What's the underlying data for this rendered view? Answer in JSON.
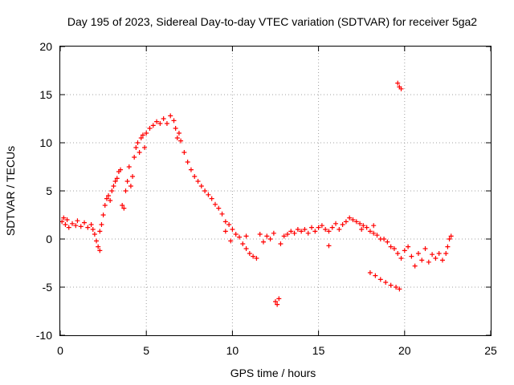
{
  "chart_data": {
    "type": "scatter",
    "title": "Day 195 of 2023, Sidereal Day-to-day VTEC variation (SDTVAR) for receiver 5ga2",
    "xlabel": "GPS time / hours",
    "ylabel": "SDTVAR / TECUs",
    "xlim": [
      0,
      25
    ],
    "ylim": [
      -10,
      20
    ],
    "xticks": [
      "0",
      "5",
      "10",
      "15",
      "20",
      "25"
    ],
    "yticks": [
      "-10",
      "-5",
      "0",
      "5",
      "10",
      "15",
      "20"
    ],
    "grid": true,
    "marker": "+",
    "color": "#ff0000",
    "series": [
      {
        "name": "5ga2",
        "points": [
          [
            0.1,
            1.8
          ],
          [
            0.2,
            2.2
          ],
          [
            0.3,
            1.5
          ],
          [
            0.4,
            2.0
          ],
          [
            0.5,
            1.2
          ],
          [
            0.7,
            1.6
          ],
          [
            0.9,
            1.4
          ],
          [
            1.0,
            1.9
          ],
          [
            1.2,
            1.3
          ],
          [
            1.4,
            1.7
          ],
          [
            1.6,
            1.2
          ],
          [
            1.8,
            1.5
          ],
          [
            1.9,
            1.0
          ],
          [
            2.0,
            0.5
          ],
          [
            2.1,
            -0.2
          ],
          [
            2.2,
            -0.8
          ],
          [
            2.3,
            -1.2
          ],
          [
            2.3,
            0.8
          ],
          [
            2.4,
            1.5
          ],
          [
            2.5,
            2.5
          ],
          [
            2.6,
            3.5
          ],
          [
            2.7,
            4.2
          ],
          [
            2.8,
            4.5
          ],
          [
            2.9,
            4.0
          ],
          [
            3.0,
            5.0
          ],
          [
            3.1,
            5.5
          ],
          [
            3.2,
            6.0
          ],
          [
            3.3,
            6.3
          ],
          [
            3.4,
            7.0
          ],
          [
            3.5,
            7.2
          ],
          [
            3.6,
            3.5
          ],
          [
            3.7,
            3.2
          ],
          [
            3.8,
            5.0
          ],
          [
            3.9,
            6.0
          ],
          [
            4.0,
            7.5
          ],
          [
            4.1,
            5.5
          ],
          [
            4.2,
            6.5
          ],
          [
            4.3,
            8.5
          ],
          [
            4.4,
            9.5
          ],
          [
            4.5,
            10.0
          ],
          [
            4.6,
            9.0
          ],
          [
            4.7,
            10.5
          ],
          [
            4.8,
            10.8
          ],
          [
            4.9,
            9.5
          ],
          [
            5.0,
            11.0
          ],
          [
            5.2,
            11.5
          ],
          [
            5.4,
            11.8
          ],
          [
            5.6,
            12.2
          ],
          [
            5.8,
            12.0
          ],
          [
            6.0,
            12.5
          ],
          [
            6.2,
            12.0
          ],
          [
            6.4,
            12.8
          ],
          [
            6.6,
            12.3
          ],
          [
            6.7,
            11.5
          ],
          [
            6.8,
            10.5
          ],
          [
            6.9,
            11.0
          ],
          [
            7.0,
            10.2
          ],
          [
            7.2,
            9.0
          ],
          [
            7.4,
            8.0
          ],
          [
            7.6,
            7.2
          ],
          [
            7.8,
            6.5
          ],
          [
            8.0,
            6.0
          ],
          [
            8.2,
            5.5
          ],
          [
            8.4,
            5.0
          ],
          [
            8.6,
            4.6
          ],
          [
            8.8,
            4.2
          ],
          [
            9.0,
            3.6
          ],
          [
            9.2,
            3.2
          ],
          [
            9.4,
            2.6
          ],
          [
            9.6,
            1.8
          ],
          [
            9.8,
            1.5
          ],
          [
            10.0,
            1.0
          ],
          [
            10.2,
            0.5
          ],
          [
            10.4,
            0.2
          ],
          [
            10.6,
            -0.5
          ],
          [
            10.8,
            0.3
          ],
          [
            11.0,
            -1.5
          ],
          [
            11.2,
            -1.8
          ],
          [
            11.4,
            -2.0
          ],
          [
            11.6,
            0.5
          ],
          [
            11.8,
            -0.3
          ],
          [
            12.0,
            0.3
          ],
          [
            12.2,
            0.0
          ],
          [
            12.4,
            0.6
          ],
          [
            12.5,
            -6.5
          ],
          [
            12.6,
            -6.8
          ],
          [
            12.7,
            -6.2
          ],
          [
            12.8,
            -0.5
          ],
          [
            13.0,
            0.3
          ],
          [
            13.2,
            0.5
          ],
          [
            13.4,
            0.8
          ],
          [
            13.6,
            0.6
          ],
          [
            13.8,
            1.0
          ],
          [
            14.0,
            0.8
          ],
          [
            14.2,
            1.0
          ],
          [
            14.4,
            0.6
          ],
          [
            14.6,
            1.2
          ],
          [
            14.8,
            0.8
          ],
          [
            15.0,
            1.2
          ],
          [
            15.2,
            1.4
          ],
          [
            15.4,
            1.0
          ],
          [
            15.6,
            0.8
          ],
          [
            15.8,
            1.2
          ],
          [
            16.0,
            1.6
          ],
          [
            16.2,
            1.0
          ],
          [
            16.4,
            1.5
          ],
          [
            16.6,
            1.8
          ],
          [
            16.8,
            2.2
          ],
          [
            17.0,
            2.0
          ],
          [
            17.2,
            1.8
          ],
          [
            17.4,
            1.6
          ],
          [
            17.6,
            1.4
          ],
          [
            17.8,
            1.2
          ],
          [
            18.0,
            0.8
          ],
          [
            18.2,
            0.6
          ],
          [
            18.4,
            0.4
          ],
          [
            18.6,
            0.0
          ],
          [
            18.8,
            0.0
          ],
          [
            19.0,
            -0.3
          ],
          [
            19.2,
            -0.8
          ],
          [
            19.4,
            -1.0
          ],
          [
            19.6,
            -1.5
          ],
          [
            19.8,
            -2.0
          ],
          [
            20.0,
            -1.2
          ],
          [
            20.2,
            -0.8
          ],
          [
            20.4,
            -1.8
          ],
          [
            20.6,
            -2.8
          ],
          [
            20.8,
            -1.5
          ],
          [
            21.0,
            -2.2
          ],
          [
            21.2,
            -1.0
          ],
          [
            21.4,
            -2.4
          ],
          [
            21.6,
            -1.6
          ],
          [
            21.8,
            -2.0
          ],
          [
            22.0,
            -1.5
          ],
          [
            22.2,
            -2.2
          ],
          [
            22.4,
            -1.5
          ],
          [
            22.5,
            -0.8
          ],
          [
            22.6,
            0.0
          ],
          [
            22.7,
            0.3
          ],
          [
            18.0,
            -3.5
          ],
          [
            18.3,
            -3.8
          ],
          [
            18.6,
            -4.2
          ],
          [
            18.9,
            -4.5
          ],
          [
            19.2,
            -4.8
          ],
          [
            19.5,
            -5.0
          ],
          [
            19.7,
            -5.2
          ],
          [
            19.6,
            16.2
          ],
          [
            19.7,
            15.8
          ],
          [
            19.8,
            15.6
          ],
          [
            15.6,
            -0.7
          ],
          [
            17.5,
            1.0
          ],
          [
            18.2,
            1.4
          ],
          [
            10.8,
            -1.0
          ],
          [
            9.6,
            0.8
          ],
          [
            9.9,
            -0.2
          ]
        ]
      }
    ]
  }
}
